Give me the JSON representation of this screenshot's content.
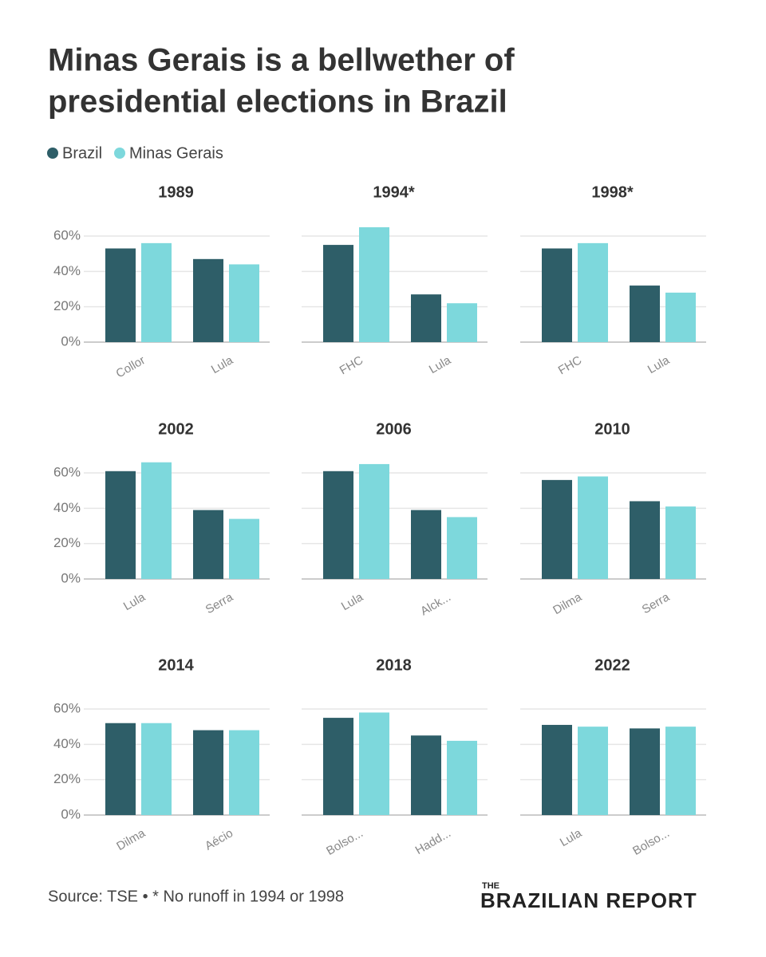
{
  "title": [
    "Minas Gerais is a bellwether of",
    "presidential elections in Brazil"
  ],
  "source": "Source: TSE • * No runoff in 1994 or 1998",
  "logo": {
    "top": "THE",
    "main": "BRAZILIAN REPORT"
  },
  "chart_data": [
    {
      "type": "bar",
      "title": "1989",
      "categories": [
        "Collor",
        "Lula"
      ],
      "series": [
        {
          "name": "Brazil",
          "color": "#2e5e68",
          "values": [
            53,
            47
          ]
        },
        {
          "name": "Minas Gerais",
          "color": "#7dd8dc",
          "values": [
            56,
            44
          ]
        }
      ],
      "ylim": [
        0,
        66
      ],
      "yticks": [
        {
          "value": 0,
          "label": "0%"
        },
        {
          "value": 20,
          "label": "20%"
        },
        {
          "value": 40,
          "label": "40%"
        },
        {
          "value": 60,
          "label": "60%"
        }
      ],
      "grid": true
    },
    {
      "type": "bar",
      "title": "1994*",
      "categories": [
        "FHC",
        "Lula"
      ],
      "series": [
        {
          "name": "Brazil",
          "color": "#2e5e68",
          "values": [
            55,
            27
          ]
        },
        {
          "name": "Minas Gerais",
          "color": "#7dd8dc",
          "values": [
            65,
            22
          ]
        }
      ],
      "ylim": [
        0,
        66
      ],
      "yticks": [
        0,
        20,
        40,
        60
      ],
      "grid": true
    },
    {
      "type": "bar",
      "title": "1998*",
      "categories": [
        "FHC",
        "Lula"
      ],
      "series": [
        {
          "name": "Brazil",
          "color": "#2e5e68",
          "values": [
            53,
            32
          ]
        },
        {
          "name": "Minas Gerais",
          "color": "#7dd8dc",
          "values": [
            56,
            28
          ]
        }
      ],
      "ylim": [
        0,
        66
      ],
      "yticks": [
        0,
        20,
        40,
        60
      ],
      "grid": true
    },
    {
      "type": "bar",
      "title": "2002",
      "categories": [
        "Lula",
        "Serra"
      ],
      "series": [
        {
          "name": "Brazil",
          "color": "#2e5e68",
          "values": [
            61,
            39
          ]
        },
        {
          "name": "Minas Gerais",
          "color": "#7dd8dc",
          "values": [
            66,
            34
          ]
        }
      ],
      "ylim": [
        0,
        66
      ],
      "yticks": [
        {
          "value": 0,
          "label": "0%"
        },
        {
          "value": 20,
          "label": "20%"
        },
        {
          "value": 40,
          "label": "40%"
        },
        {
          "value": 60,
          "label": "60%"
        }
      ],
      "grid": true
    },
    {
      "type": "bar",
      "title": "2006",
      "categories": [
        "Lula",
        "Alck..."
      ],
      "series": [
        {
          "name": "Brazil",
          "color": "#2e5e68",
          "values": [
            61,
            39
          ]
        },
        {
          "name": "Minas Gerais",
          "color": "#7dd8dc",
          "values": [
            65,
            35
          ]
        }
      ],
      "ylim": [
        0,
        66
      ],
      "yticks": [
        0,
        20,
        40,
        60
      ],
      "grid": true
    },
    {
      "type": "bar",
      "title": "2010",
      "categories": [
        "Dilma",
        "Serra"
      ],
      "series": [
        {
          "name": "Brazil",
          "color": "#2e5e68",
          "values": [
            56,
            44
          ]
        },
        {
          "name": "Minas Gerais",
          "color": "#7dd8dc",
          "values": [
            58,
            41
          ]
        }
      ],
      "ylim": [
        0,
        66
      ],
      "yticks": [
        0,
        20,
        40,
        60
      ],
      "grid": true
    },
    {
      "type": "bar",
      "title": "2014",
      "categories": [
        "Dilma",
        "Aécio"
      ],
      "series": [
        {
          "name": "Brazil",
          "color": "#2e5e68",
          "values": [
            52,
            48
          ]
        },
        {
          "name": "Minas Gerais",
          "color": "#7dd8dc",
          "values": [
            52,
            48
          ]
        }
      ],
      "ylim": [
        0,
        66
      ],
      "yticks": [
        {
          "value": 0,
          "label": "0%"
        },
        {
          "value": 20,
          "label": "20%"
        },
        {
          "value": 40,
          "label": "40%"
        },
        {
          "value": 60,
          "label": "60%"
        }
      ],
      "grid": true
    },
    {
      "type": "bar",
      "title": "2018",
      "categories": [
        "Bolso...",
        "Hadd..."
      ],
      "series": [
        {
          "name": "Brazil",
          "color": "#2e5e68",
          "values": [
            55,
            45
          ]
        },
        {
          "name": "Minas Gerais",
          "color": "#7dd8dc",
          "values": [
            58,
            42
          ]
        }
      ],
      "ylim": [
        0,
        66
      ],
      "yticks": [
        0,
        20,
        40,
        60
      ],
      "grid": true
    },
    {
      "type": "bar",
      "title": "2022",
      "categories": [
        "Lula",
        "Bolso..."
      ],
      "series": [
        {
          "name": "Brazil",
          "color": "#2e5e68",
          "values": [
            51,
            49
          ]
        },
        {
          "name": "Minas Gerais",
          "color": "#7dd8dc",
          "values": [
            50,
            50
          ]
        }
      ],
      "ylim": [
        0,
        66
      ],
      "yticks": [
        0,
        20,
        40,
        60
      ],
      "grid": true
    }
  ]
}
